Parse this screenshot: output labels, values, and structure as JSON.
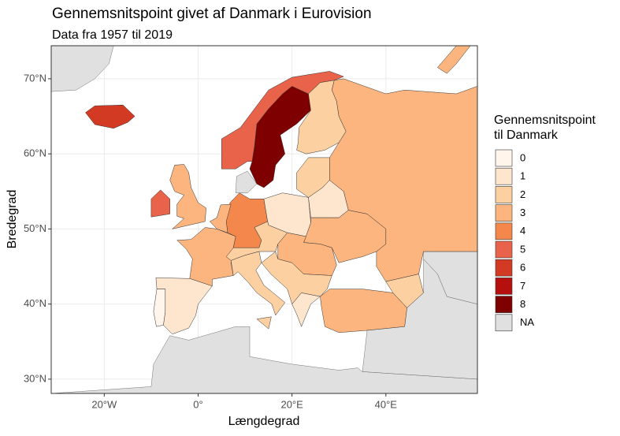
{
  "chart_data": {
    "type": "choropleth",
    "title": "Gennemsnitspoint givet af Danmark i Eurovision",
    "subtitle": "Data fra 1957 til 2019",
    "x_label": "Længdegrad",
    "y_label": "Bredegrad",
    "xlim": [
      -31.3,
      59.5
    ],
    "ylim": [
      28.1,
      74.4
    ],
    "xticks": [
      {
        "value": -20,
        "label": "20°W"
      },
      {
        "value": 0,
        "label": "0°"
      },
      {
        "value": 20,
        "label": "20°E"
      },
      {
        "value": 40,
        "label": "40°E"
      }
    ],
    "yticks": [
      {
        "value": 30,
        "label": "30°N"
      },
      {
        "value": 40,
        "label": "40°N"
      },
      {
        "value": 50,
        "label": "50°N"
      },
      {
        "value": 60,
        "label": "60°N"
      },
      {
        "value": 70,
        "label": "70°N"
      }
    ],
    "grid": true,
    "legend_title": [
      "Gennemsnitspoint",
      "til Danmark"
    ],
    "legend": [
      {
        "name": "0",
        "color": "#fff5eb"
      },
      {
        "name": "1",
        "color": "#fee6ce"
      },
      {
        "name": "2",
        "color": "#fdd0a2"
      },
      {
        "name": "3",
        "color": "#fdb57f"
      },
      {
        "name": "4",
        "color": "#f4874c"
      },
      {
        "name": "5",
        "color": "#e8634a"
      },
      {
        "name": "6",
        "color": "#d33a24"
      },
      {
        "name": "7",
        "color": "#b5100e"
      },
      {
        "name": "8",
        "color": "#7f0000"
      },
      {
        "name": "NA",
        "color": "#e0e0e0"
      }
    ],
    "values": [
      8,
      5,
      2,
      3,
      6,
      5,
      3,
      3,
      1,
      0,
      4,
      3,
      1,
      2,
      1,
      3,
      2,
      3,
      2,
      2,
      2,
      1,
      3,
      2,
      3
    ]
  }
}
